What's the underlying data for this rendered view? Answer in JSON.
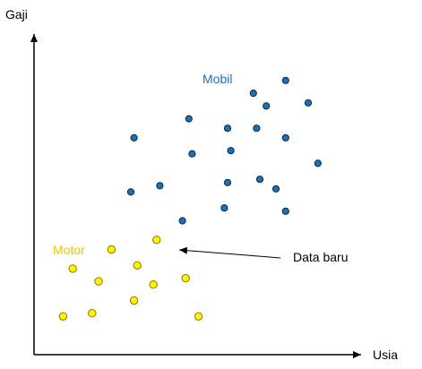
{
  "chart_data": {
    "type": "scatter",
    "xlabel": "Usia",
    "ylabel": "Gaji",
    "xlim": [
      0,
      100
    ],
    "ylim": [
      0,
      100
    ],
    "grid": false,
    "series": [
      {
        "name": "Mobil",
        "color": "#1F6FB2",
        "stroke": "#0B2A4A",
        "points": [
          {
            "x": 78,
            "y": 86
          },
          {
            "x": 68,
            "y": 82
          },
          {
            "x": 72,
            "y": 78
          },
          {
            "x": 85,
            "y": 79
          },
          {
            "x": 48,
            "y": 74
          },
          {
            "x": 60,
            "y": 71
          },
          {
            "x": 69,
            "y": 71
          },
          {
            "x": 78,
            "y": 68
          },
          {
            "x": 31,
            "y": 68
          },
          {
            "x": 49,
            "y": 63
          },
          {
            "x": 61,
            "y": 64
          },
          {
            "x": 88,
            "y": 60
          },
          {
            "x": 70,
            "y": 55
          },
          {
            "x": 60,
            "y": 54
          },
          {
            "x": 39,
            "y": 53
          },
          {
            "x": 75,
            "y": 52
          },
          {
            "x": 30,
            "y": 51
          },
          {
            "x": 59,
            "y": 46
          },
          {
            "x": 78,
            "y": 45
          },
          {
            "x": 46,
            "y": 42
          }
        ]
      },
      {
        "name": "Motor",
        "color": "#FFF200",
        "stroke": "#8A7A00",
        "points": [
          {
            "x": 24,
            "y": 33
          },
          {
            "x": 12,
            "y": 27
          },
          {
            "x": 32,
            "y": 28
          },
          {
            "x": 20,
            "y": 23
          },
          {
            "x": 47,
            "y": 24
          },
          {
            "x": 37,
            "y": 22
          },
          {
            "x": 31,
            "y": 17
          },
          {
            "x": 18,
            "y": 13
          },
          {
            "x": 9,
            "y": 12
          },
          {
            "x": 51,
            "y": 12
          }
        ]
      },
      {
        "name": "Data baru",
        "color": "#FFF200",
        "stroke": "#8A7A00",
        "points": [
          {
            "x": 38,
            "y": 36
          }
        ]
      }
    ],
    "annotations": [
      {
        "text": "Data baru",
        "target_series": "Data baru",
        "arrow": true
      }
    ]
  }
}
